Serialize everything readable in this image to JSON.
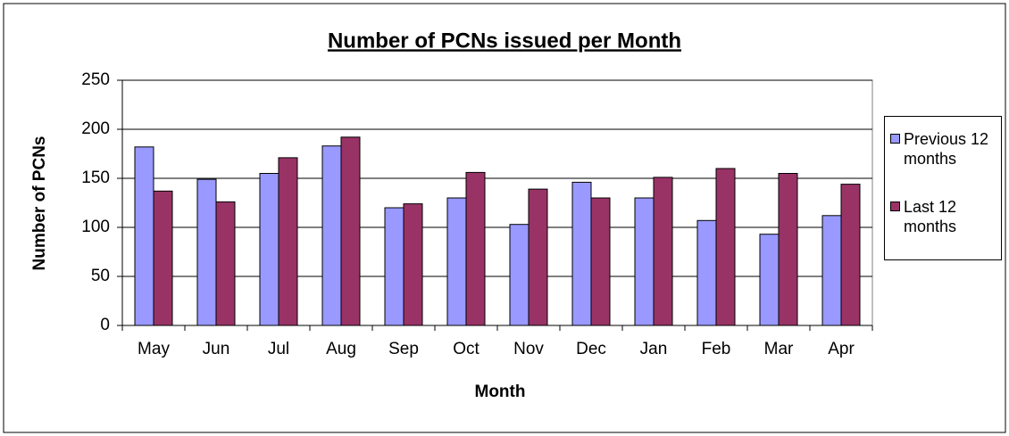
{
  "chart_data": {
    "type": "bar",
    "title": "Number of PCNs issued per Month",
    "x_label": "Month",
    "y_label": "Number of PCNs",
    "categories": [
      "May",
      "Jun",
      "Jul",
      "Aug",
      "Sep",
      "Oct",
      "Nov",
      "Dec",
      "Jan",
      "Feb",
      "Mar",
      "Apr"
    ],
    "series": [
      {
        "name": "Previous 12 months",
        "color": "#9999ff",
        "values": [
          182,
          149,
          155,
          183,
          120,
          130,
          103,
          146,
          130,
          107,
          93,
          112
        ]
      },
      {
        "name": "Last 12 months",
        "color": "#993366",
        "values": [
          137,
          126,
          171,
          192,
          124,
          156,
          139,
          130,
          151,
          160,
          155,
          144
        ]
      }
    ],
    "ylim": [
      0,
      250
    ],
    "yticks": [
      0,
      50,
      100,
      150,
      200,
      250
    ],
    "grid": true,
    "legend": "right"
  }
}
